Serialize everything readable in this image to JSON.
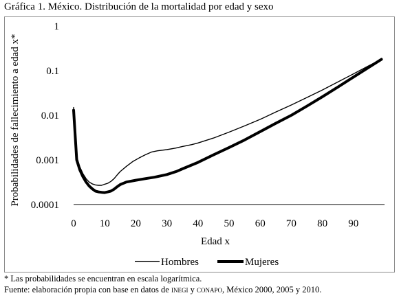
{
  "page": {
    "title": "Gráfica 1. México. Distribución de la mortalidad por edad y sexo",
    "footnote": "* Las probabilidades se encuentran en escala logarítmica.",
    "source_prefix": "Fuente: elaboración propia con base en datos de ",
    "source_inegi": "inegi",
    "source_mid": " y ",
    "source_conapo": "conapo",
    "source_suffix": ", México 2000, 2005 y 2010."
  },
  "chart_data": {
    "type": "line",
    "title": "Gráfica 1. México. Distribución de la mortalidad por edad y sexo",
    "xlabel": "Edad x",
    "ylabel": "Probabilidades de fallecimiento a edad x*",
    "xlim": [
      0,
      100
    ],
    "ylim": [
      0.0001,
      1
    ],
    "yscale": "log",
    "x_ticks": [
      0,
      10,
      20,
      30,
      40,
      50,
      60,
      70,
      80,
      90
    ],
    "y_ticks": [
      {
        "value": 0.0001,
        "label": "0.0001"
      },
      {
        "value": 0.001,
        "label": "0.001"
      },
      {
        "value": 0.01,
        "label": "0.01"
      },
      {
        "value": 0.1,
        "label": "0.1"
      },
      {
        "value": 1,
        "label": "1"
      }
    ],
    "grid": false,
    "legend": "bottom",
    "series": [
      {
        "name": "Hombres",
        "color": "#000000",
        "style": "thin",
        "points": [
          [
            0,
            0.015
          ],
          [
            1,
            0.0012
          ],
          [
            2,
            0.0007
          ],
          [
            3,
            0.00049
          ],
          [
            4,
            0.00038
          ],
          [
            5,
            0.00032
          ],
          [
            6,
            0.00029
          ],
          [
            7,
            0.000275
          ],
          [
            8,
            0.00027
          ],
          [
            9,
            0.00027
          ],
          [
            10,
            0.000285
          ],
          [
            11,
            0.0003
          ],
          [
            12,
            0.00033
          ],
          [
            13,
            0.00038
          ],
          [
            14,
            0.00046
          ],
          [
            15,
            0.00055
          ],
          [
            17,
            0.00072
          ],
          [
            19,
            0.00092
          ],
          [
            21,
            0.0011
          ],
          [
            23,
            0.0013
          ],
          [
            25,
            0.0015
          ],
          [
            27,
            0.0016
          ],
          [
            30,
            0.0017
          ],
          [
            33,
            0.00185
          ],
          [
            35,
            0.002
          ],
          [
            38,
            0.0022
          ],
          [
            40,
            0.0024
          ],
          [
            45,
            0.0031
          ],
          [
            50,
            0.0042
          ],
          [
            55,
            0.0058
          ],
          [
            60,
            0.0081
          ],
          [
            65,
            0.0118
          ],
          [
            70,
            0.017
          ],
          [
            75,
            0.025
          ],
          [
            80,
            0.037
          ],
          [
            85,
            0.056
          ],
          [
            90,
            0.085
          ],
          [
            95,
            0.13
          ],
          [
            99,
            0.18
          ]
        ]
      },
      {
        "name": "Mujeres",
        "color": "#000000",
        "style": "thick",
        "points": [
          [
            0,
            0.013
          ],
          [
            1,
            0.001
          ],
          [
            2,
            0.0006
          ],
          [
            3,
            0.00042
          ],
          [
            4,
            0.00032
          ],
          [
            5,
            0.00026
          ],
          [
            6,
            0.000225
          ],
          [
            7,
            0.0002
          ],
          [
            8,
            0.000192
          ],
          [
            9,
            0.000188
          ],
          [
            10,
            0.000185
          ],
          [
            11,
            0.000192
          ],
          [
            12,
            0.0002
          ],
          [
            13,
            0.00022
          ],
          [
            14,
            0.00025
          ],
          [
            15,
            0.00028
          ],
          [
            17,
            0.00032
          ],
          [
            20,
            0.00035
          ],
          [
            23,
            0.00038
          ],
          [
            26,
            0.00041
          ],
          [
            30,
            0.00047
          ],
          [
            33,
            0.00055
          ],
          [
            35,
            0.00063
          ],
          [
            40,
            0.00088
          ],
          [
            45,
            0.0013
          ],
          [
            50,
            0.0019
          ],
          [
            55,
            0.0028
          ],
          [
            60,
            0.0043
          ],
          [
            65,
            0.0066
          ],
          [
            70,
            0.01
          ],
          [
            75,
            0.016
          ],
          [
            80,
            0.026
          ],
          [
            85,
            0.043
          ],
          [
            90,
            0.072
          ],
          [
            95,
            0.12
          ],
          [
            99,
            0.18
          ]
        ]
      }
    ]
  }
}
